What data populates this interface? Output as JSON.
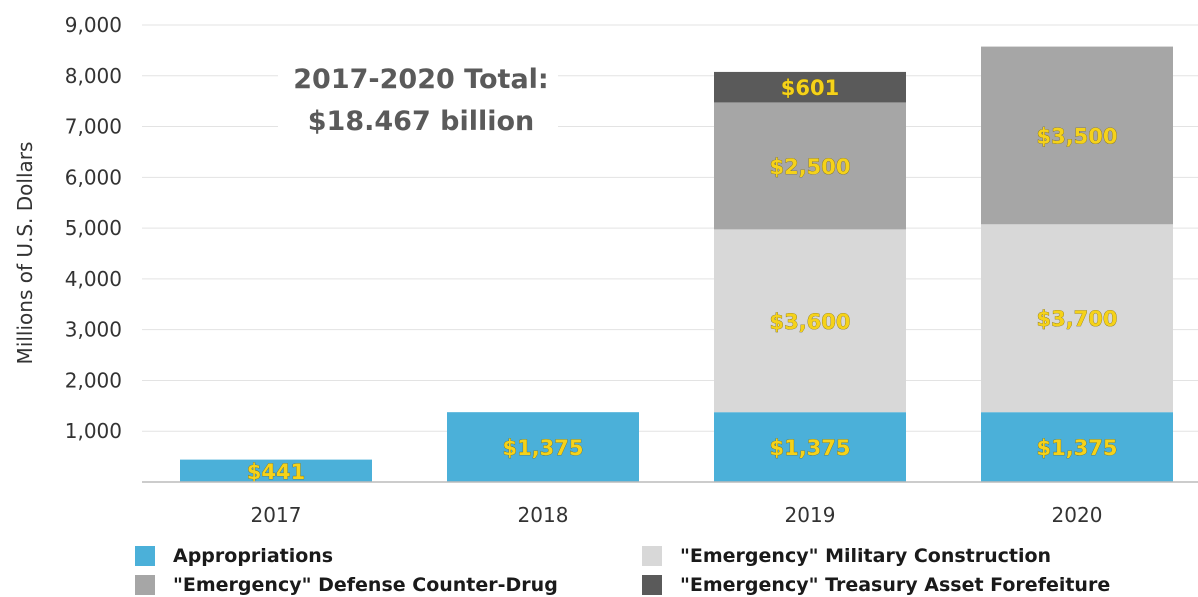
{
  "chart_data": {
    "type": "bar",
    "stacked": true,
    "categories": [
      "2017",
      "2018",
      "2019",
      "2020"
    ],
    "series": [
      {
        "name": "Appropriations",
        "color": "#4bb0d9",
        "values": [
          441,
          1375,
          1375,
          1375
        ],
        "labels": [
          "$441",
          "$1,375",
          "$1,375",
          "$1,375"
        ]
      },
      {
        "name": "\"Emergency\" Military Construction",
        "color": "#d8d8d8",
        "values": [
          0,
          0,
          3600,
          3700
        ],
        "labels": [
          "",
          "",
          "$3,600",
          "$3,700"
        ]
      },
      {
        "name": "\"Emergency\" Defense Counter-Drug",
        "color": "#a6a6a6",
        "values": [
          0,
          0,
          2500,
          3500
        ],
        "labels": [
          "",
          "",
          "$2,500",
          "$3,500"
        ]
      },
      {
        "name": "\"Emergency\" Treasury Asset Forefeiture",
        "color": "#5a5a5a",
        "values": [
          0,
          0,
          601,
          0
        ],
        "labels": [
          "",
          "",
          "$601",
          ""
        ]
      }
    ],
    "yticks": [
      "1,000",
      "2,000",
      "3,000",
      "4,000",
      "5,000",
      "6,000",
      "7,000",
      "8,000",
      "9,000"
    ],
    "ylabel": "Millions of U.S. Dollars",
    "ylim": [
      0,
      9000
    ],
    "grid": true,
    "legend_position": "bottom",
    "annotation": {
      "line1": "2017-2020 Total:",
      "line2": "$18.467 billion"
    }
  }
}
